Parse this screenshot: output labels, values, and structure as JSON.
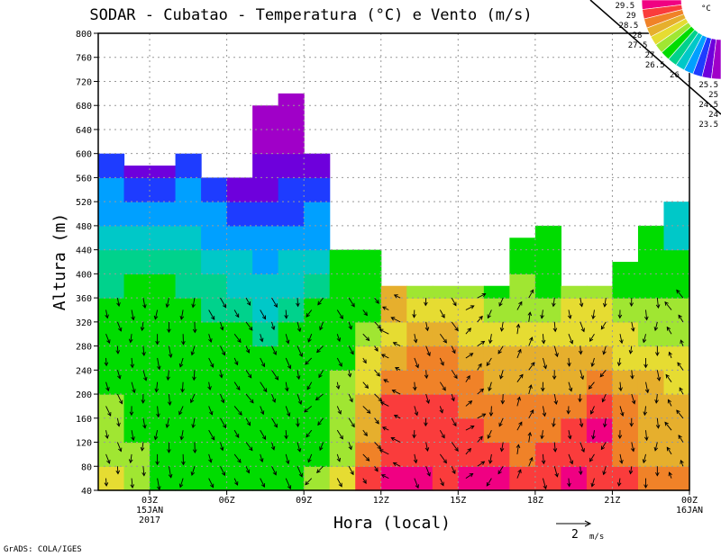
{
  "chart_data": {
    "type": "heatmap",
    "title": "SODAR - Cubatao - Temperatura (°C) e Vento (m/s)",
    "xlabel": "Hora (local)",
    "ylabel": "Altura (m)",
    "ylim": [
      40,
      800
    ],
    "xlim_hours": [
      1,
      24
    ],
    "yticks": [
      40,
      80,
      120,
      160,
      200,
      240,
      280,
      320,
      360,
      400,
      440,
      480,
      520,
      560,
      600,
      640,
      680,
      720,
      760,
      800
    ],
    "xticks": [
      {
        "hour": 3,
        "label": "03Z",
        "sub1": "15JAN",
        "sub2": "2017"
      },
      {
        "hour": 6,
        "label": "06Z"
      },
      {
        "hour": 9,
        "label": "09Z"
      },
      {
        "hour": 12,
        "label": "12Z"
      },
      {
        "hour": 15,
        "label": "15Z"
      },
      {
        "hour": 18,
        "label": "18Z"
      },
      {
        "hour": 21,
        "label": "21Z"
      },
      {
        "hour": 24,
        "label": "00Z",
        "sub1": "16JAN"
      }
    ],
    "grid": true,
    "row_height_m": 40,
    "row_base_m": 40,
    "column_hours": [
      1,
      2,
      3,
      4,
      5,
      6,
      7,
      8,
      9,
      10,
      11,
      12,
      13,
      14,
      15,
      16,
      17,
      18,
      19,
      20,
      21,
      22,
      23
    ],
    "top_m": [
      600,
      580,
      580,
      600,
      560,
      560,
      680,
      700,
      600,
      440,
      440,
      380,
      380,
      380,
      380,
      380,
      460,
      480,
      380,
      380,
      420,
      480,
      520
    ],
    "temperature": [
      [
        27.0,
        26.8,
        26.8,
        26.8,
        26.3,
        26.3,
        26.3,
        26.3,
        25.8,
        25.8,
        25.3,
        24.8,
        24.8,
        24.3
      ],
      [
        26.8,
        26.8,
        26.3,
        26.3,
        26.3,
        26.3,
        26.3,
        26.3,
        26.3,
        25.8,
        25.3,
        24.8,
        24.3,
        23.8
      ],
      [
        26.3,
        26.3,
        26.3,
        26.3,
        26.3,
        26.3,
        26.3,
        26.3,
        26.3,
        25.8,
        25.3,
        24.8,
        24.3,
        23.8
      ],
      [
        26.3,
        26.3,
        26.3,
        26.3,
        26.3,
        26.3,
        26.3,
        26.3,
        25.8,
        25.8,
        25.3,
        24.8,
        24.8,
        24.3
      ],
      [
        26.3,
        26.3,
        26.3,
        26.3,
        26.3,
        26.3,
        26.3,
        25.8,
        25.8,
        25.3,
        24.8,
        24.8,
        24.3,
        24.3
      ],
      [
        26.3,
        26.3,
        26.3,
        26.3,
        26.3,
        26.3,
        26.3,
        25.8,
        25.3,
        25.3,
        24.8,
        24.3,
        23.8,
        23.8
      ],
      [
        26.3,
        26.3,
        26.3,
        26.3,
        26.3,
        26.3,
        25.8,
        25.3,
        25.3,
        24.8,
        24.8,
        24.3,
        23.8,
        23.8,
        23.3,
        23.3
      ],
      [
        26.3,
        26.3,
        26.3,
        26.3,
        26.3,
        26.3,
        26.3,
        25.8,
        25.3,
        25.3,
        24.8,
        24.3,
        24.3,
        23.8,
        23.3,
        23.3,
        23.3
      ],
      [
        26.8,
        26.3,
        26.3,
        26.3,
        26.3,
        26.3,
        26.3,
        26.3,
        25.8,
        25.3,
        24.8,
        24.8,
        24.3,
        23.8
      ],
      [
        27.3,
        26.8,
        26.8,
        26.8,
        26.8,
        26.3,
        26.3,
        26.3,
        26.3,
        26.3
      ],
      [
        28.8,
        28.3,
        27.8,
        27.8,
        27.3,
        27.3,
        26.8,
        26.3,
        26.3,
        26.3
      ],
      [
        29.6,
        28.8,
        28.8,
        28.8,
        28.3,
        27.8,
        27.3,
        27.8,
        27.8
      ],
      [
        29.6,
        28.8,
        28.8,
        28.8,
        28.3,
        28.3,
        27.8,
        27.3,
        26.8
      ],
      [
        28.8,
        28.8,
        28.8,
        28.8,
        28.3,
        28.3,
        27.8,
        27.3,
        26.8
      ],
      [
        29.6,
        28.8,
        28.8,
        28.3,
        28.3,
        27.8,
        27.3,
        27.3,
        26.8
      ],
      [
        29.6,
        28.8,
        28.3,
        28.3,
        27.8,
        27.8,
        27.3,
        26.8,
        26.3
      ],
      [
        28.8,
        28.3,
        28.3,
        28.3,
        27.8,
        27.8,
        27.3,
        26.8,
        26.8,
        26.3,
        26.3
      ],
      [
        28.8,
        28.8,
        28.3,
        28.3,
        27.8,
        27.8,
        27.3,
        26.8,
        26.3,
        26.3,
        26.3
      ],
      [
        29.6,
        28.8,
        28.8,
        28.3,
        27.8,
        27.8,
        27.3,
        27.3,
        26.8
      ],
      [
        28.8,
        28.8,
        29.6,
        28.8,
        28.3,
        27.8,
        27.3,
        27.3,
        26.8
      ],
      [
        28.8,
        28.3,
        28.3,
        28.3,
        27.8,
        27.3,
        27.3,
        26.8,
        26.3,
        26.3
      ],
      [
        28.3,
        27.8,
        27.8,
        27.8,
        27.8,
        27.3,
        26.8,
        26.8,
        26.3,
        26.3,
        26.3
      ],
      [
        28.3,
        27.8,
        27.8,
        27.8,
        27.3,
        27.3,
        26.8,
        26.8,
        26.3,
        26.3,
        25.3,
        25.3
      ]
    ],
    "wind_uv_ms": [
      [
        0.3,
        -1.0
      ],
      [
        0.1,
        -1.1
      ],
      [
        0.0,
        -1.2
      ],
      [
        -0.2,
        -1.1
      ],
      [
        0.4,
        -1.0
      ],
      [
        0.6,
        -0.9
      ],
      [
        0.5,
        -1.0
      ],
      [
        0.3,
        -1.1
      ],
      [
        -0.6,
        -0.8
      ],
      [
        0.4,
        -0.9
      ],
      [
        0.6,
        -0.7
      ],
      [
        -0.8,
        0.4
      ],
      [
        0.2,
        -1.0
      ],
      [
        0.5,
        -0.9
      ],
      [
        0.7,
        0.6
      ],
      [
        -0.3,
        -1.0
      ],
      [
        0.4,
        1.0
      ],
      [
        0.1,
        -1.1
      ],
      [
        0.2,
        -1.0
      ],
      [
        -0.4,
        -0.9
      ],
      [
        0.1,
        -1.0
      ],
      [
        0.0,
        -1.1
      ],
      [
        -0.5,
        0.8
      ]
    ],
    "wind_heights_m": [
      60,
      100,
      140,
      180,
      220,
      260,
      300,
      340
    ],
    "vector_reference": {
      "value": 2,
      "label": "2",
      "unit": "m/s"
    },
    "colorbar": {
      "unit": "°C",
      "levels": [
        23.5,
        24,
        24.5,
        25,
        25.5,
        26,
        26.5,
        27,
        27.5,
        28,
        28.5,
        29,
        29.5
      ],
      "labels": [
        "23.5",
        "24",
        "24.5",
        "25",
        "25.5",
        "26",
        "26.5",
        "27",
        "27.5",
        "28",
        "28.5",
        "29",
        "29.5"
      ],
      "colors": [
        "#a000c8",
        "#6e00dc",
        "#1e3cff",
        "#00a0ff",
        "#00c8c8",
        "#00d28c",
        "#00dc00",
        "#a0e632",
        "#e6dc32",
        "#e6af2d",
        "#f08228",
        "#fa3c3c",
        "#f00082"
      ]
    }
  },
  "footer": {
    "credit": "GrADS: COLA/IGES"
  }
}
